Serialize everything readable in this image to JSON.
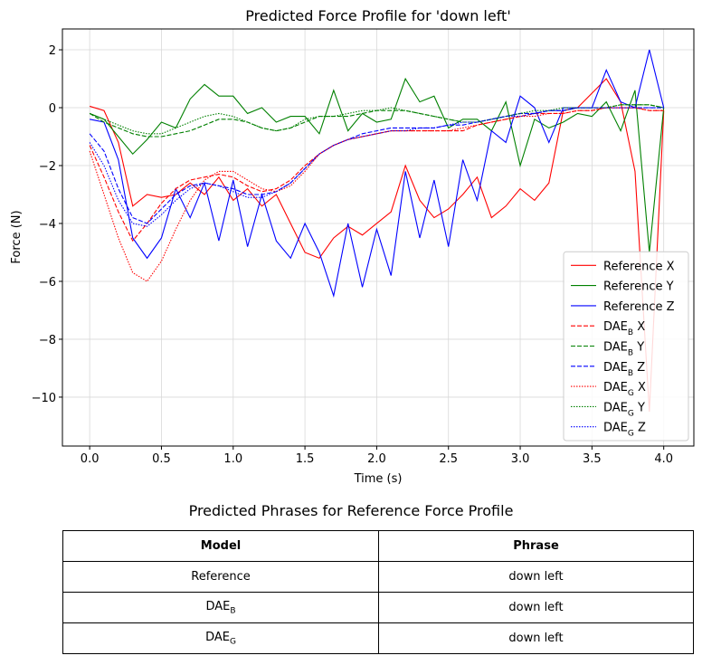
{
  "chart_data": {
    "type": "line",
    "title": "Predicted Force Profile for 'down left'",
    "x_label": "Time (s)",
    "y_label": "Force (N)",
    "x": [
      0.0,
      0.1,
      0.2,
      0.3,
      0.4,
      0.5,
      0.6,
      0.7,
      0.8,
      0.9,
      1.0,
      1.1,
      1.2,
      1.3,
      1.4,
      1.5,
      1.6,
      1.7,
      1.8,
      1.9,
      2.0,
      2.1,
      2.2,
      2.3,
      2.4,
      2.5,
      2.6,
      2.7,
      2.8,
      2.9,
      3.0,
      3.1,
      3.2,
      3.3,
      3.4,
      3.5,
      3.6,
      3.7,
      3.8,
      3.9,
      4.0
    ],
    "series": [
      {
        "name": "Reference X",
        "color": "#ff0000",
        "style": "solid",
        "values": [
          0.05,
          -0.1,
          -1.2,
          -3.4,
          -3.0,
          -3.1,
          -3.0,
          -2.6,
          -3.0,
          -2.4,
          -3.2,
          -2.8,
          -3.4,
          -3.0,
          -4.0,
          -5.0,
          -5.2,
          -4.5,
          -4.1,
          -4.4,
          -4.0,
          -3.6,
          -2.0,
          -3.2,
          -3.8,
          -3.5,
          -3.0,
          -2.4,
          -3.8,
          -3.4,
          -2.8,
          -3.2,
          -2.6,
          -0.1,
          0.0,
          0.5,
          1.0,
          0.2,
          -2.2,
          -10.5,
          -0.1
        ]
      },
      {
        "name": "Reference Y",
        "color": "#008000",
        "style": "solid",
        "values": [
          -0.2,
          -0.4,
          -1.0,
          -1.6,
          -1.1,
          -0.5,
          -0.7,
          0.3,
          0.8,
          0.4,
          0.4,
          -0.2,
          0.0,
          -0.5,
          -0.3,
          -0.3,
          -0.9,
          0.6,
          -0.8,
          -0.2,
          -0.5,
          -0.4,
          1.0,
          0.2,
          0.4,
          -0.7,
          -0.4,
          -0.4,
          -0.8,
          0.2,
          -2.0,
          -0.4,
          -0.7,
          -0.5,
          -0.2,
          -0.3,
          0.2,
          -0.8,
          0.6,
          -5.0,
          0.0
        ]
      },
      {
        "name": "Reference Z",
        "color": "#0000ff",
        "style": "solid",
        "values": [
          -0.4,
          -0.5,
          -1.8,
          -4.5,
          -5.2,
          -4.5,
          -2.8,
          -3.8,
          -2.6,
          -4.6,
          -2.5,
          -4.8,
          -3.0,
          -4.6,
          -5.2,
          -4.0,
          -5.0,
          -6.5,
          -4.0,
          -6.2,
          -4.2,
          -5.8,
          -2.2,
          -4.5,
          -2.5,
          -4.8,
          -1.8,
          -3.2,
          -0.8,
          -1.2,
          0.4,
          0.0,
          -1.2,
          0.0,
          0.0,
          0.0,
          1.3,
          0.2,
          0.0,
          2.0,
          0.0
        ]
      },
      {
        "name": "DAE_B X",
        "color": "#ff0000",
        "style": "dashed",
        "values": [
          -1.3,
          -2.4,
          -3.6,
          -4.6,
          -4.0,
          -3.3,
          -2.8,
          -2.5,
          -2.4,
          -2.3,
          -2.4,
          -2.7,
          -2.9,
          -2.8,
          -2.5,
          -2.0,
          -1.6,
          -1.3,
          -1.1,
          -1.0,
          -0.9,
          -0.8,
          -0.8,
          -0.8,
          -0.8,
          -0.8,
          -0.8,
          -0.6,
          -0.5,
          -0.4,
          -0.3,
          -0.2,
          -0.2,
          -0.2,
          -0.1,
          -0.1,
          0.0,
          0.0,
          0.0,
          -0.1,
          -0.1
        ]
      },
      {
        "name": "DAE_B Y",
        "color": "#008000",
        "style": "dashed",
        "values": [
          -0.2,
          -0.5,
          -0.7,
          -0.9,
          -1.0,
          -1.0,
          -0.9,
          -0.8,
          -0.6,
          -0.4,
          -0.4,
          -0.5,
          -0.7,
          -0.8,
          -0.7,
          -0.5,
          -0.3,
          -0.3,
          -0.3,
          -0.2,
          -0.1,
          -0.1,
          -0.1,
          -0.2,
          -0.3,
          -0.4,
          -0.5,
          -0.5,
          -0.4,
          -0.3,
          -0.2,
          -0.2,
          -0.1,
          -0.1,
          0.0,
          0.0,
          0.0,
          0.1,
          0.1,
          0.1,
          0.0
        ]
      },
      {
        "name": "DAE_B Z",
        "color": "#0000ff",
        "style": "dashed",
        "values": [
          -0.9,
          -1.5,
          -2.8,
          -3.8,
          -4.0,
          -3.5,
          -3.0,
          -2.7,
          -2.6,
          -2.7,
          -2.8,
          -3.0,
          -3.0,
          -2.9,
          -2.6,
          -2.1,
          -1.6,
          -1.3,
          -1.1,
          -0.9,
          -0.8,
          -0.7,
          -0.7,
          -0.7,
          -0.7,
          -0.6,
          -0.6,
          -0.5,
          -0.4,
          -0.3,
          -0.2,
          -0.2,
          -0.1,
          -0.1,
          0.0,
          0.0,
          0.0,
          0.0,
          0.0,
          0.0,
          0.0
        ]
      },
      {
        "name": "DAE_G X",
        "color": "#ff0000",
        "style": "dotted",
        "values": [
          -1.5,
          -3.0,
          -4.5,
          -5.7,
          -6.0,
          -5.3,
          -4.2,
          -3.2,
          -2.5,
          -2.2,
          -2.2,
          -2.5,
          -2.8,
          -2.9,
          -2.7,
          -2.2,
          -1.6,
          -1.3,
          -1.1,
          -1.0,
          -0.9,
          -0.8,
          -0.8,
          -0.8,
          -0.8,
          -0.8,
          -0.7,
          -0.6,
          -0.5,
          -0.4,
          -0.3,
          -0.3,
          -0.2,
          -0.2,
          -0.1,
          -0.1,
          0.0,
          0.0,
          0.0,
          -0.1,
          -0.1
        ]
      },
      {
        "name": "DAE_G Y",
        "color": "#008000",
        "style": "dotted",
        "values": [
          -0.2,
          -0.4,
          -0.6,
          -0.8,
          -0.9,
          -0.9,
          -0.7,
          -0.5,
          -0.3,
          -0.2,
          -0.3,
          -0.5,
          -0.7,
          -0.8,
          -0.7,
          -0.4,
          -0.3,
          -0.3,
          -0.2,
          -0.1,
          -0.1,
          0.0,
          -0.1,
          -0.2,
          -0.3,
          -0.4,
          -0.5,
          -0.5,
          -0.4,
          -0.3,
          -0.2,
          -0.1,
          -0.1,
          0.0,
          0.0,
          0.0,
          0.0,
          0.1,
          0.1,
          0.1,
          0.0
        ]
      },
      {
        "name": "DAE_G Z",
        "color": "#0000ff",
        "style": "dotted",
        "values": [
          -1.2,
          -2.0,
          -3.2,
          -4.0,
          -4.1,
          -3.7,
          -3.2,
          -2.8,
          -2.6,
          -2.7,
          -2.9,
          -3.1,
          -3.1,
          -2.9,
          -2.6,
          -2.1,
          -1.6,
          -1.3,
          -1.1,
          -1.0,
          -0.9,
          -0.8,
          -0.8,
          -0.7,
          -0.7,
          -0.6,
          -0.5,
          -0.5,
          -0.4,
          -0.3,
          -0.3,
          -0.2,
          -0.1,
          -0.1,
          0.0,
          0.0,
          0.0,
          0.0,
          0.0,
          0.0,
          0.0
        ]
      }
    ],
    "xlim": [
      -0.19,
      4.21
    ],
    "ylim": [
      -11.69,
      2.72
    ],
    "xticks": [
      {
        "value": 0,
        "label": "0.0"
      },
      0.5,
      {
        "value": 1,
        "label": "1.0"
      },
      1.5,
      {
        "value": 2,
        "label": "2.0"
      },
      2.5,
      {
        "value": 3,
        "label": "3.0"
      },
      3.5,
      {
        "value": 4,
        "label": "4.0"
      }
    ],
    "yticks": [
      {
        "value": -10,
        "label": "−10"
      },
      {
        "value": -8,
        "label": "−8"
      },
      {
        "value": -6,
        "label": "−6"
      },
      {
        "value": -4,
        "label": "−4"
      },
      {
        "value": -2,
        "label": "−2"
      },
      0,
      2
    ],
    "grid": true,
    "legend": "lower right"
  },
  "table": {
    "title": "Predicted Phrases for Reference Force Profile",
    "header": [
      "Model",
      "Phrase"
    ],
    "rows": [
      [
        "Reference",
        "down left"
      ],
      [
        "DAE_B",
        "down left"
      ],
      [
        "DAE_G",
        "down left"
      ]
    ]
  }
}
